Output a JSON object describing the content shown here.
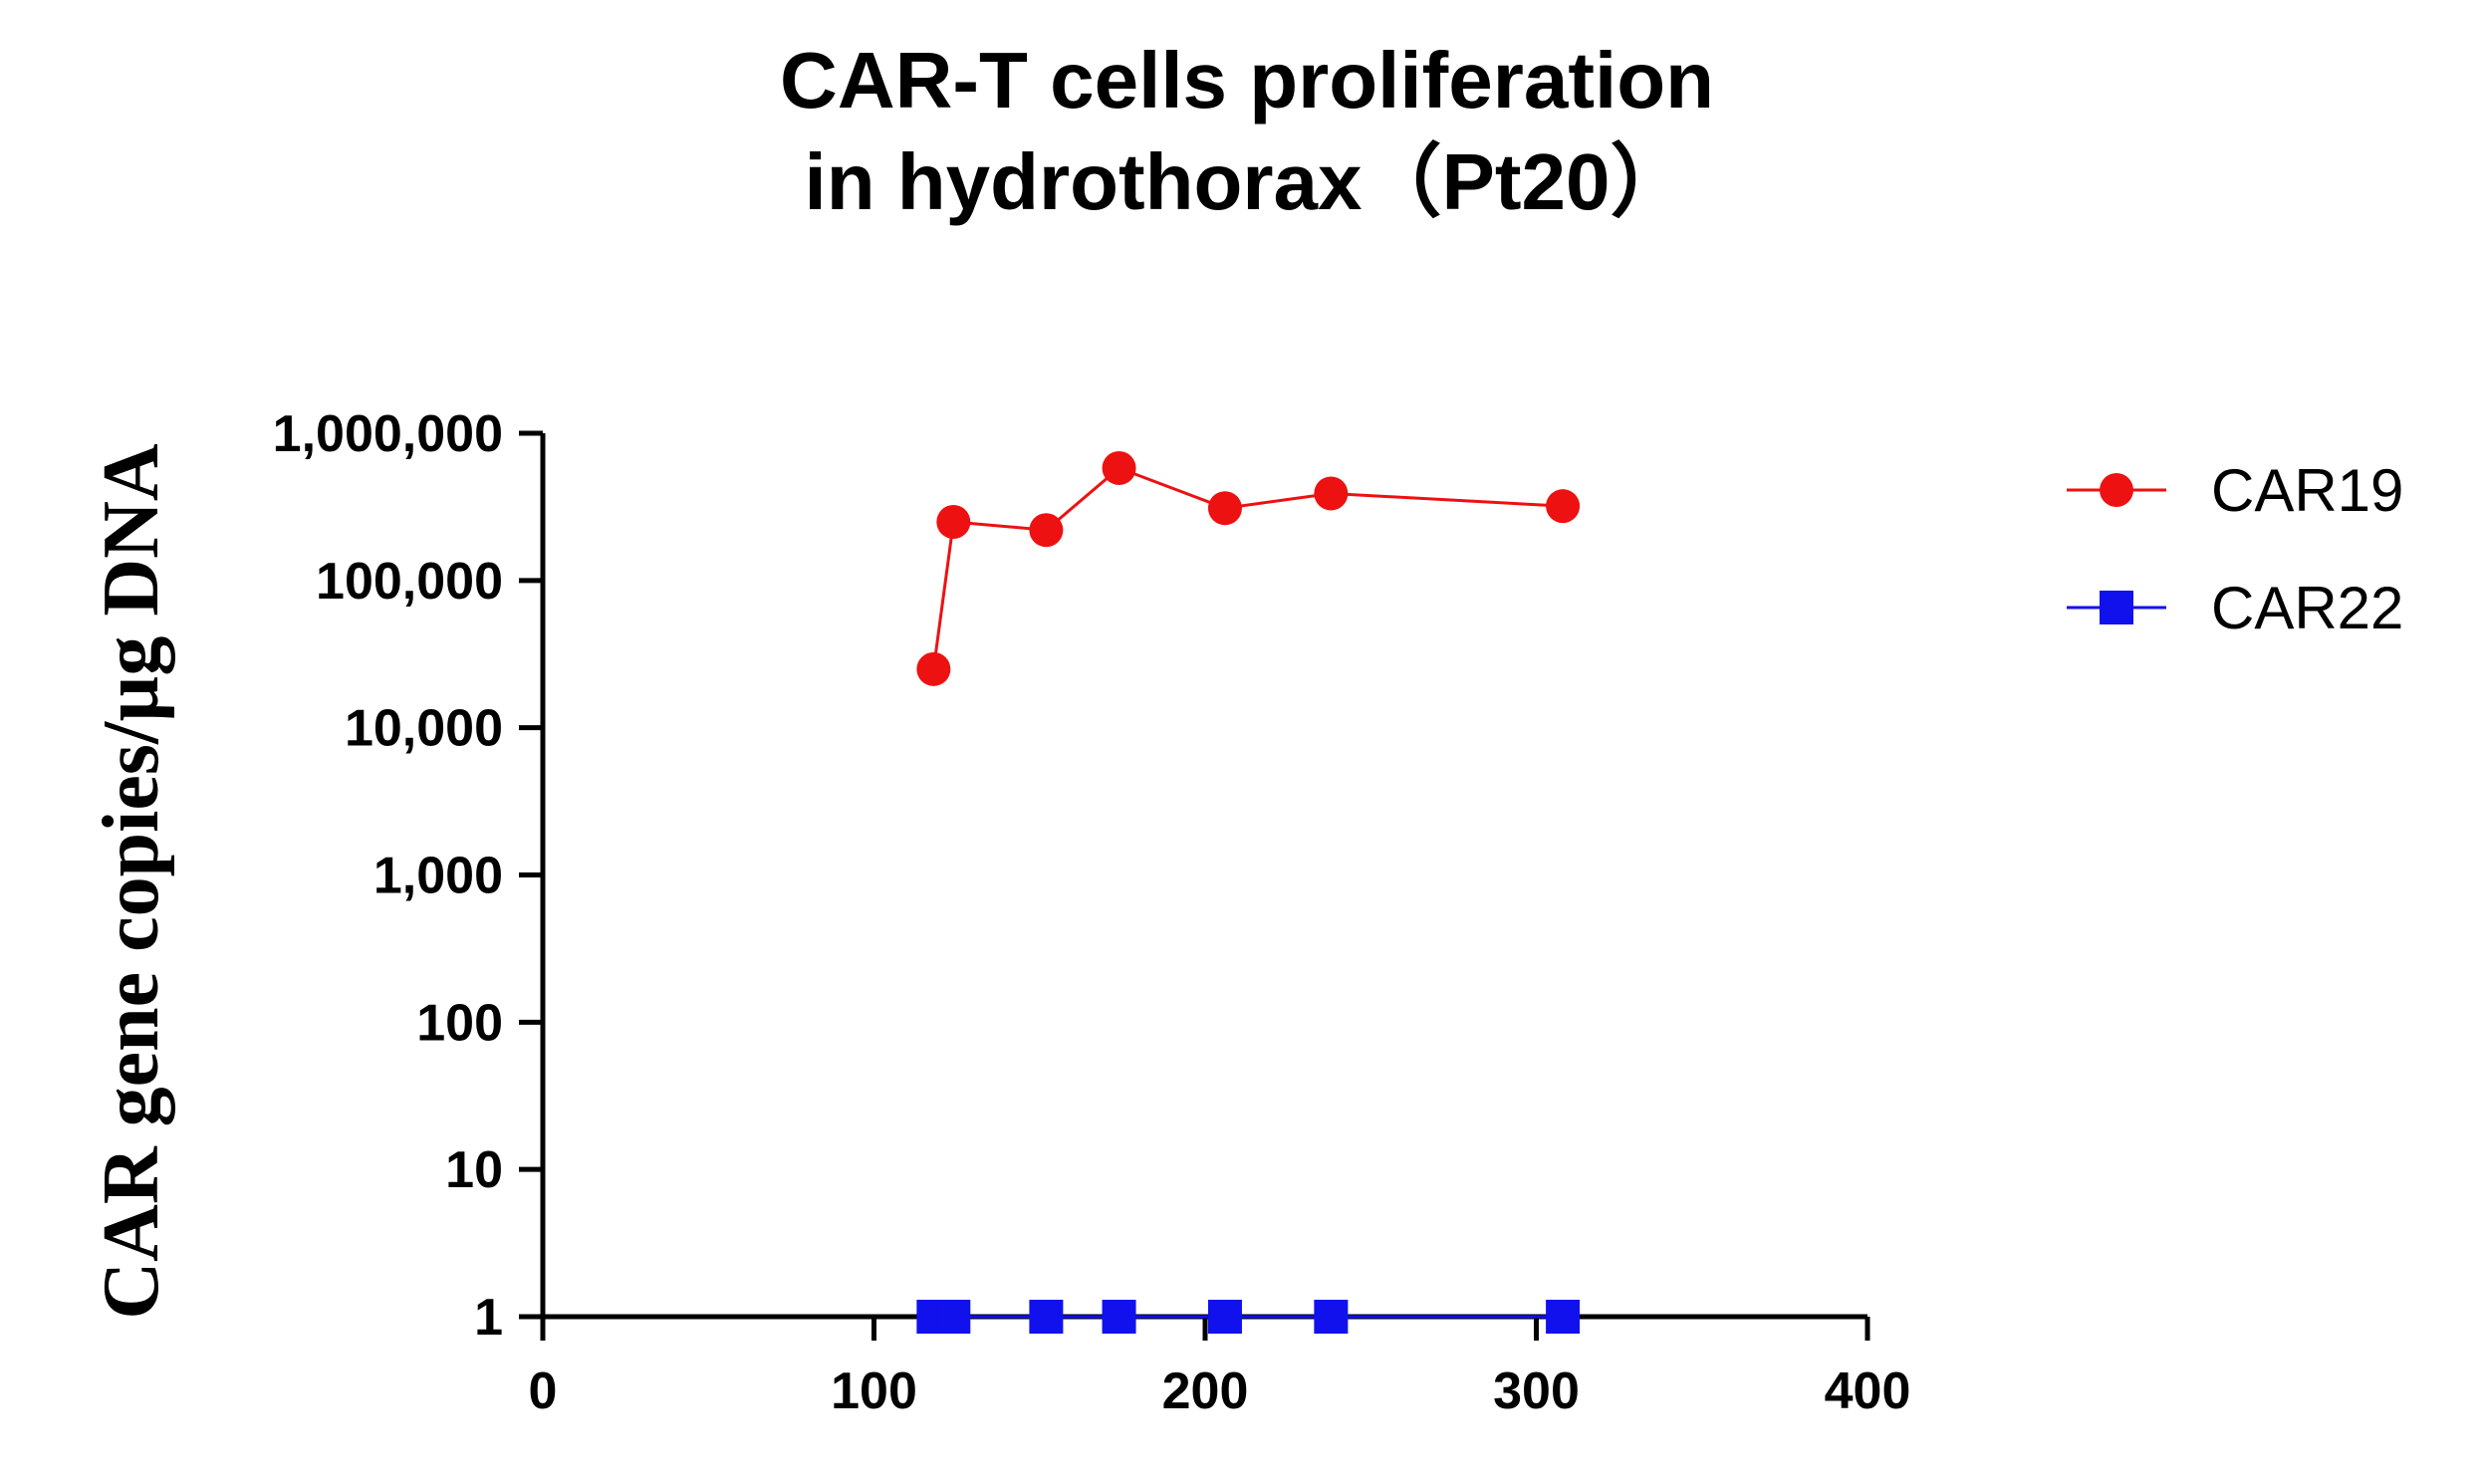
{
  "chart_data": {
    "type": "line",
    "title_line1": "CAR-T cells proliferation",
    "title_line2": "in hydrothorax（Pt20）",
    "xlabel": "",
    "ylabel": "CAR gene copies/µg DNA",
    "xlim": [
      0,
      400
    ],
    "ylim": [
      1,
      1000000
    ],
    "y_scale": "log",
    "legend_placement": "right",
    "x_ticks": [
      {
        "value": 0,
        "label": "0"
      },
      {
        "value": 100,
        "label": "100"
      },
      {
        "value": 200,
        "label": "200"
      },
      {
        "value": 300,
        "label": "300"
      },
      {
        "value": 400,
        "label": "400"
      }
    ],
    "y_ticks": [
      {
        "value": 1,
        "label": "1"
      },
      {
        "value": 10,
        "label": "10"
      },
      {
        "value": 100,
        "label": "100"
      },
      {
        "value": 1000,
        "label": "1,000"
      },
      {
        "value": 10000,
        "label": "10,000"
      },
      {
        "value": 100000,
        "label": "100,000"
      },
      {
        "value": 1000000,
        "label": "1,000,000"
      }
    ],
    "series": [
      {
        "name": "CAR19",
        "color": "#ee1111",
        "marker": "circle",
        "points": [
          {
            "x": 118,
            "y": 25000
          },
          {
            "x": 124,
            "y": 250000
          },
          {
            "x": 152,
            "y": 220000
          },
          {
            "x": 174,
            "y": 580000
          },
          {
            "x": 206,
            "y": 310000
          },
          {
            "x": 238,
            "y": 390000
          },
          {
            "x": 308,
            "y": 320000
          }
        ]
      },
      {
        "name": "CAR22",
        "color": "#1111ee",
        "marker": "square",
        "points": [
          {
            "x": 118,
            "y": 1
          },
          {
            "x": 124,
            "y": 1
          },
          {
            "x": 152,
            "y": 1
          },
          {
            "x": 174,
            "y": 1
          },
          {
            "x": 206,
            "y": 1
          },
          {
            "x": 238,
            "y": 1
          },
          {
            "x": 308,
            "y": 1
          }
        ]
      }
    ]
  }
}
